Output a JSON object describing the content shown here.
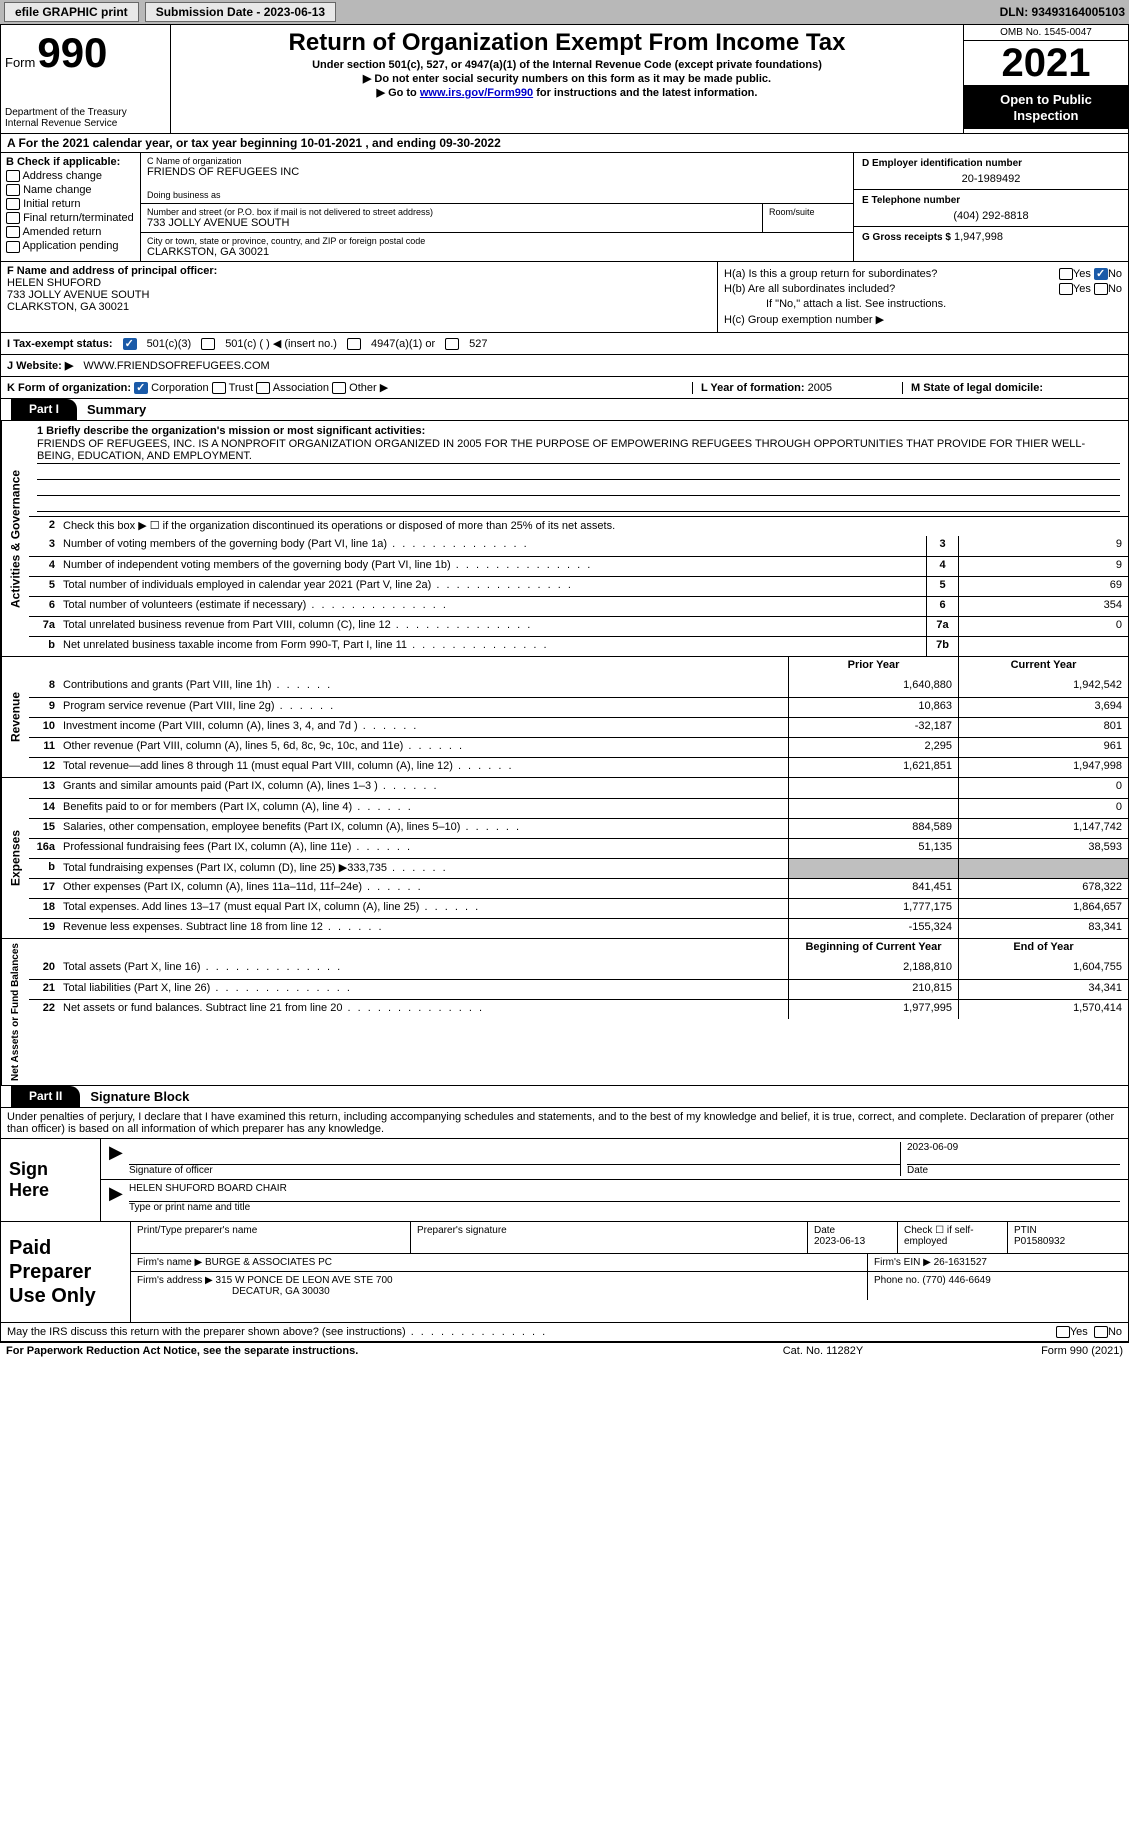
{
  "topbar": {
    "efile": "efile GRAPHIC print",
    "submission_label": "Submission Date - 2023-06-13",
    "dln": "DLN: 93493164005103"
  },
  "header": {
    "form_word": "Form",
    "form_num": "990",
    "dept": "Department of the Treasury",
    "irs": "Internal Revenue Service",
    "title": "Return of Organization Exempt From Income Tax",
    "sub1": "Under section 501(c), 527, or 4947(a)(1) of the Internal Revenue Code (except private foundations)",
    "sub2": "▶ Do not enter social security numbers on this form as it may be made public.",
    "sub3_pre": "▶ Go to ",
    "sub3_link": "www.irs.gov/Form990",
    "sub3_post": " for instructions and the latest information.",
    "omb": "OMB No. 1545-0047",
    "year": "2021",
    "inspect": "Open to Public Inspection"
  },
  "row_a": "A For the 2021 calendar year, or tax year beginning 10-01-2021    , and ending 09-30-2022",
  "col_b": {
    "header": "B Check if applicable:",
    "items": [
      "Address change",
      "Name change",
      "Initial return",
      "Final return/terminated",
      "Amended return",
      "Application pending"
    ]
  },
  "col_c": {
    "name_lbl": "C Name of organization",
    "name": "FRIENDS OF REFUGEES INC",
    "dba_lbl": "Doing business as",
    "dba": "",
    "addr_lbl": "Number and street (or P.O. box if mail is not delivered to street address)",
    "addr": "733 JOLLY AVENUE SOUTH",
    "room_lbl": "Room/suite",
    "city_lbl": "City or town, state or province, country, and ZIP or foreign postal code",
    "city": "CLARKSTON, GA  30021"
  },
  "col_d": {
    "ein_lbl": "D Employer identification number",
    "ein": "20-1989492",
    "tel_lbl": "E Telephone number",
    "tel": "(404) 292-8818",
    "gross_lbl": "G Gross receipts $",
    "gross": "1,947,998"
  },
  "col_f": {
    "lbl": "F  Name and address of principal officer:",
    "name": "HELEN SHUFORD",
    "addr1": "733 JOLLY AVENUE SOUTH",
    "addr2": "CLARKSTON, GA  30021"
  },
  "col_h": {
    "ha": "H(a)  Is this a group return for subordinates?",
    "hb": "H(b)  Are all subordinates included?",
    "hb_note": "If \"No,\" attach a list. See instructions.",
    "hc": "H(c)  Group exemption number ▶",
    "yes": "Yes",
    "no": "No"
  },
  "row_i": {
    "lbl": "I   Tax-exempt status:",
    "o1": "501(c)(3)",
    "o2": "501(c) (  ) ◀ (insert no.)",
    "o3": "4947(a)(1) or",
    "o4": "527"
  },
  "row_j": {
    "lbl": "J   Website: ▶",
    "val": "WWW.FRIENDSOFREFUGEES.COM"
  },
  "row_k": {
    "lbl": "K Form of organization:",
    "o1": "Corporation",
    "o2": "Trust",
    "o3": "Association",
    "o4": "Other ▶",
    "l_lbl": "L Year of formation:",
    "l_val": "2005",
    "m_lbl": "M State of legal domicile:",
    "m_val": ""
  },
  "part1": {
    "hdr": "Part I",
    "title": "Summary",
    "line1_lbl": "1   Briefly describe the organization's mission or most significant activities:",
    "mission": "FRIENDS OF REFUGEES, INC. IS A NONPROFIT ORGANIZATION ORGANIZED IN 2005 FOR THE PURPOSE OF EMPOWERING REFUGEES THROUGH OPPORTUNITIES THAT PROVIDE FOR THIER WELL-BEING, EDUCATION, AND EMPLOYMENT.",
    "line2": "Check this box ▶ ☐  if the organization discontinued its operations or disposed of more than 25% of its net assets.",
    "sections": {
      "gov": "Activities & Governance",
      "rev": "Revenue",
      "exp": "Expenses",
      "net": "Net Assets or Fund Balances"
    },
    "col_prior": "Prior Year",
    "col_current": "Current Year",
    "col_begin": "Beginning of Current Year",
    "col_end": "End of Year",
    "rows_gov": [
      {
        "n": "3",
        "t": "Number of voting members of the governing body (Part VI, line 1a)",
        "box": "3",
        "v": "9"
      },
      {
        "n": "4",
        "t": "Number of independent voting members of the governing body (Part VI, line 1b)",
        "box": "4",
        "v": "9"
      },
      {
        "n": "5",
        "t": "Total number of individuals employed in calendar year 2021 (Part V, line 2a)",
        "box": "5",
        "v": "69"
      },
      {
        "n": "6",
        "t": "Total number of volunteers (estimate if necessary)",
        "box": "6",
        "v": "354"
      },
      {
        "n": "7a",
        "t": "Total unrelated business revenue from Part VIII, column (C), line 12",
        "box": "7a",
        "v": "0"
      },
      {
        "n": "b",
        "t": "Net unrelated business taxable income from Form 990-T, Part I, line 11",
        "box": "7b",
        "v": ""
      }
    ],
    "rows_rev": [
      {
        "n": "8",
        "t": "Contributions and grants (Part VIII, line 1h)",
        "p": "1,640,880",
        "c": "1,942,542"
      },
      {
        "n": "9",
        "t": "Program service revenue (Part VIII, line 2g)",
        "p": "10,863",
        "c": "3,694"
      },
      {
        "n": "10",
        "t": "Investment income (Part VIII, column (A), lines 3, 4, and 7d )",
        "p": "-32,187",
        "c": "801"
      },
      {
        "n": "11",
        "t": "Other revenue (Part VIII, column (A), lines 5, 6d, 8c, 9c, 10c, and 11e)",
        "p": "2,295",
        "c": "961"
      },
      {
        "n": "12",
        "t": "Total revenue—add lines 8 through 11 (must equal Part VIII, column (A), line 12)",
        "p": "1,621,851",
        "c": "1,947,998"
      }
    ],
    "rows_exp": [
      {
        "n": "13",
        "t": "Grants and similar amounts paid (Part IX, column (A), lines 1–3 )",
        "p": "",
        "c": "0"
      },
      {
        "n": "14",
        "t": "Benefits paid to or for members (Part IX, column (A), line 4)",
        "p": "",
        "c": "0"
      },
      {
        "n": "15",
        "t": "Salaries, other compensation, employee benefits (Part IX, column (A), lines 5–10)",
        "p": "884,589",
        "c": "1,147,742"
      },
      {
        "n": "16a",
        "t": "Professional fundraising fees (Part IX, column (A), line 11e)",
        "p": "51,135",
        "c": "38,593"
      },
      {
        "n": "b",
        "t": "Total fundraising expenses (Part IX, column (D), line 25) ▶333,735",
        "p": "grey",
        "c": "grey"
      },
      {
        "n": "17",
        "t": "Other expenses (Part IX, column (A), lines 11a–11d, 11f–24e)",
        "p": "841,451",
        "c": "678,322"
      },
      {
        "n": "18",
        "t": "Total expenses. Add lines 13–17 (must equal Part IX, column (A), line 25)",
        "p": "1,777,175",
        "c": "1,864,657"
      },
      {
        "n": "19",
        "t": "Revenue less expenses. Subtract line 18 from line 12",
        "p": "-155,324",
        "c": "83,341"
      }
    ],
    "rows_net": [
      {
        "n": "20",
        "t": "Total assets (Part X, line 16)",
        "p": "2,188,810",
        "c": "1,604,755"
      },
      {
        "n": "21",
        "t": "Total liabilities (Part X, line 26)",
        "p": "210,815",
        "c": "34,341"
      },
      {
        "n": "22",
        "t": "Net assets or fund balances. Subtract line 21 from line 20",
        "p": "1,977,995",
        "c": "1,570,414"
      }
    ]
  },
  "part2": {
    "hdr": "Part II",
    "title": "Signature Block",
    "penalty": "Under penalties of perjury, I declare that I have examined this return, including accompanying schedules and statements, and to the best of my knowledge and belief, it is true, correct, and complete. Declaration of preparer (other than officer) is based on all information of which preparer has any knowledge.",
    "sign_here": "Sign Here",
    "sig_officer": "Signature of officer",
    "sig_date": "2023-06-09",
    "date_lbl": "Date",
    "name_title": "HELEN SHUFORD  BOARD CHAIR",
    "name_lbl": "Type or print name and title"
  },
  "prep": {
    "title": "Paid Preparer Use Only",
    "r1": {
      "c1_lbl": "Print/Type preparer's name",
      "c1": "",
      "c2_lbl": "Preparer's signature",
      "c2": "",
      "c3_lbl": "Date",
      "c3": "2023-06-13",
      "c4_lbl": "Check ☐ if self-employed",
      "c5_lbl": "PTIN",
      "c5": "P01580932"
    },
    "r2": {
      "firm_lbl": "Firm's name     ▶",
      "firm": "BURGE & ASSOCIATES PC",
      "ein_lbl": "Firm's EIN ▶",
      "ein": "26-1631527"
    },
    "r3": {
      "addr_lbl": "Firm's address ▶",
      "addr": "315 W PONCE DE LEON AVE STE 700",
      "city": "DECATUR, GA  30030",
      "phone_lbl": "Phone no.",
      "phone": "(770) 446-6649"
    }
  },
  "footer": {
    "discuss": "May the IRS discuss this return with the preparer shown above? (see instructions)",
    "yes": "Yes",
    "no": "No",
    "pra": "For Paperwork Reduction Act Notice, see the separate instructions.",
    "cat": "Cat. No. 11282Y",
    "form": "Form 990 (2021)"
  }
}
